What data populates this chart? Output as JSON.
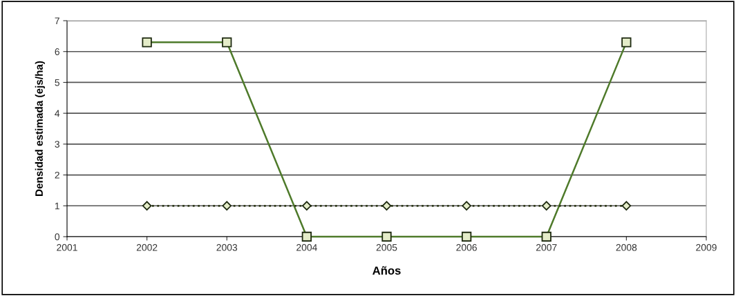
{
  "chart_data": {
    "type": "line",
    "xlabel": "Años",
    "ylabel": "Densidad estimada (ejs/ha)",
    "x": [
      2002,
      2003,
      2004,
      2005,
      2006,
      2007,
      2008
    ],
    "series": [
      {
        "color": "#4e7a2a",
        "marker": "square",
        "line_style": "solid",
        "values": [
          6.3,
          6.3,
          0,
          0,
          0,
          0,
          6.3
        ]
      },
      {
        "color": "#2f3a1a",
        "marker": "diamond",
        "line_style": "dotted",
        "values": [
          1,
          1,
          1,
          1,
          1,
          1,
          1
        ]
      }
    ],
    "xlim": [
      2001,
      2009
    ],
    "xticks": [
      2001,
      2002,
      2003,
      2004,
      2005,
      2006,
      2007,
      2008,
      2009
    ],
    "ylim": [
      0,
      7
    ],
    "yticks": [
      0,
      1,
      2,
      3,
      4,
      5,
      6,
      7
    ],
    "grid": "y",
    "legend": false
  }
}
